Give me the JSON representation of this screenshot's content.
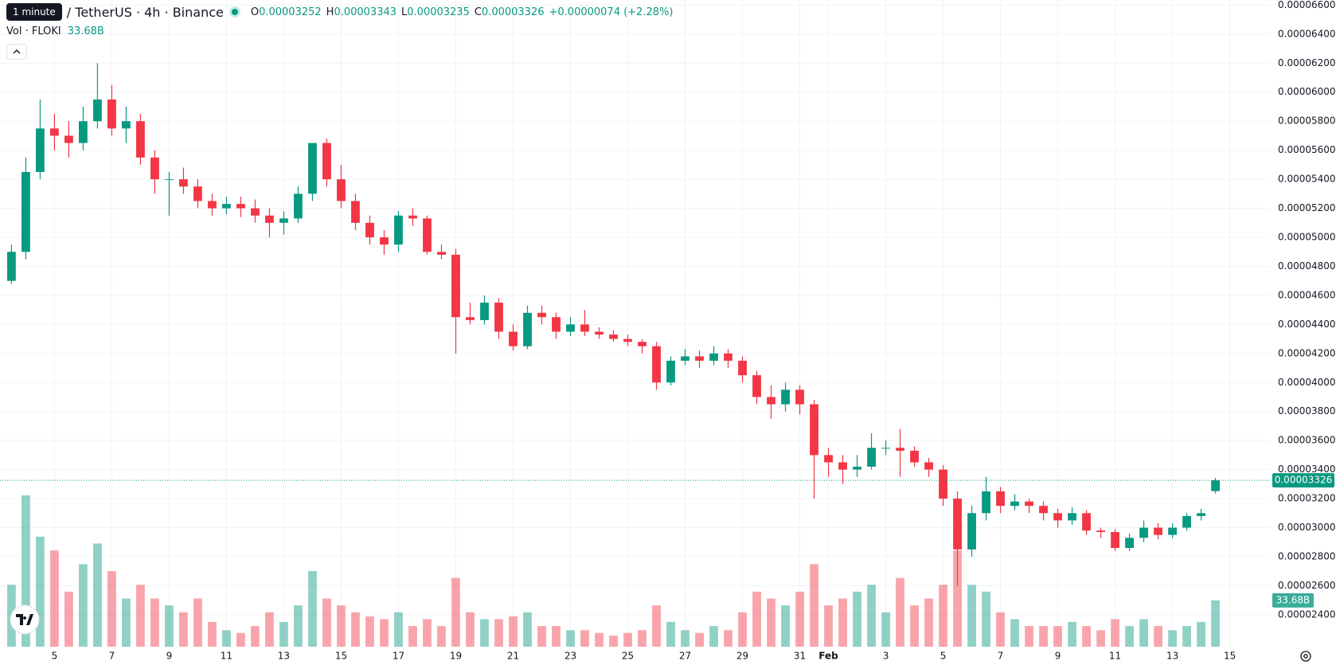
{
  "chart_data": {
    "type": "candlestick",
    "tooltip": "1 minute",
    "title": "/ TetherUS · 4h · Binance",
    "ohlc_labels": [
      "O",
      "H",
      "L",
      "C"
    ],
    "change": "+0.00000074 (+2.28%)",
    "volume_title": "Vol · FLOKI",
    "volume_last_label": "33.68B",
    "up_color": "#089981",
    "down_color": "#f23645",
    "grid": true,
    "xlim": [
      3.1,
      47.4
    ],
    "ylim": [
      2.18e-05,
      6.635e-05
    ],
    "xticks": [
      5,
      7,
      9,
      11,
      13,
      15,
      17,
      19,
      21,
      23,
      25,
      27,
      29,
      31,
      {
        "value": 32,
        "label": "Feb"
      },
      {
        "value": 34,
        "label": "3"
      },
      {
        "value": 36,
        "label": "5"
      },
      {
        "value": 38,
        "label": "7"
      },
      {
        "value": 40,
        "label": "9"
      },
      {
        "value": 42,
        "label": "11"
      },
      {
        "value": 44,
        "label": "13"
      },
      {
        "value": 46,
        "label": "15"
      }
    ],
    "yticks": [
      {
        "value": 2.4e-05,
        "label": "0.00002400"
      },
      {
        "value": 2.6e-05,
        "label": "0.00002600"
      },
      {
        "value": 2.8e-05,
        "label": "0.00002800"
      },
      {
        "value": 3e-05,
        "label": "0.00003000"
      },
      {
        "value": 3.2e-05,
        "label": "0.00003200"
      },
      {
        "value": 3.4e-05,
        "label": "0.00003400"
      },
      {
        "value": 3.6e-05,
        "label": "0.00003600"
      },
      {
        "value": 3.8e-05,
        "label": "0.00003800"
      },
      {
        "value": 4e-05,
        "label": "0.00004000"
      },
      {
        "value": 4.2e-05,
        "label": "0.00004200"
      },
      {
        "value": 4.4e-05,
        "label": "0.00004400"
      },
      {
        "value": 4.6e-05,
        "label": "0.00004600"
      },
      {
        "value": 4.8e-05,
        "label": "0.00004800"
      },
      {
        "value": 5e-05,
        "label": "0.00005000"
      },
      {
        "value": 5.2e-05,
        "label": "0.00005200"
      },
      {
        "value": 5.4e-05,
        "label": "0.00005400"
      },
      {
        "value": 5.6e-05,
        "label": "0.00005600"
      },
      {
        "value": 5.8e-05,
        "label": "0.00005800"
      },
      {
        "value": 6e-05,
        "label": "0.00006000"
      },
      {
        "value": 6.2e-05,
        "label": "0.00006200"
      },
      {
        "value": 6.4e-05,
        "label": "0.00006400"
      },
      {
        "value": 6.6e-05,
        "label": "0.00006600"
      }
    ],
    "x": [
      3.5,
      4,
      4.5,
      5,
      5.5,
      6,
      6.5,
      7,
      7.5,
      8,
      8.5,
      9,
      9.5,
      10,
      10.5,
      11,
      11.5,
      12,
      12.5,
      13,
      13.5,
      14,
      14.5,
      15,
      15.5,
      16,
      16.5,
      17,
      17.5,
      18,
      18.5,
      19,
      19.5,
      20,
      20.5,
      21,
      21.5,
      22,
      22.5,
      23,
      23.5,
      24,
      24.5,
      25,
      25.5,
      26,
      26.5,
      27,
      27.5,
      28,
      28.5,
      29,
      29.5,
      30,
      30.5,
      31,
      31.5,
      32,
      32.5,
      33,
      33.5,
      34,
      34.5,
      35,
      35.5,
      36,
      36.5,
      37,
      37.5,
      38,
      38.5,
      39,
      39.5,
      40,
      40.5,
      41,
      41.5,
      42,
      42.5,
      43,
      43.5,
      44,
      44.5,
      45,
      45.5
    ],
    "ohlc": [
      [
        4.7e-05,
        4.95e-05,
        4.68e-05,
        4.9e-05
      ],
      [
        4.9e-05,
        5.55e-05,
        4.85e-05,
        5.45e-05
      ],
      [
        5.45e-05,
        5.95e-05,
        5.4e-05,
        5.75e-05
      ],
      [
        5.75e-05,
        5.85e-05,
        5.6e-05,
        5.7e-05
      ],
      [
        5.7e-05,
        5.8e-05,
        5.55e-05,
        5.65e-05
      ],
      [
        5.65e-05,
        5.9e-05,
        5.6e-05,
        5.8e-05
      ],
      [
        5.8e-05,
        6.2e-05,
        5.75e-05,
        5.95e-05
      ],
      [
        5.95e-05,
        6.05e-05,
        5.7e-05,
        5.75e-05
      ],
      [
        5.75e-05,
        5.9e-05,
        5.65e-05,
        5.8e-05
      ],
      [
        5.8e-05,
        5.85e-05,
        5.5e-05,
        5.55e-05
      ],
      [
        5.55e-05,
        5.6e-05,
        5.3e-05,
        5.4e-05
      ],
      [
        5.4e-05,
        5.45e-05,
        5.15e-05,
        5.4e-05
      ],
      [
        5.4e-05,
        5.48e-05,
        5.3e-05,
        5.35e-05
      ],
      [
        5.35e-05,
        5.4e-05,
        5.2e-05,
        5.25e-05
      ],
      [
        5.25e-05,
        5.3e-05,
        5.15e-05,
        5.2e-05
      ],
      [
        5.2e-05,
        5.28e-05,
        5.16e-05,
        5.23e-05
      ],
      [
        5.23e-05,
        5.28e-05,
        5.14e-05,
        5.2e-05
      ],
      [
        5.2e-05,
        5.26e-05,
        5.1e-05,
        5.15e-05
      ],
      [
        5.15e-05,
        5.2e-05,
        5e-05,
        5.1e-05
      ],
      [
        5.1e-05,
        5.18e-05,
        5.02e-05,
        5.13e-05
      ],
      [
        5.13e-05,
        5.35e-05,
        5.1e-05,
        5.3e-05
      ],
      [
        5.3e-05,
        5.65e-05,
        5.25e-05,
        5.65e-05
      ],
      [
        5.65e-05,
        5.68e-05,
        5.35e-05,
        5.4e-05
      ],
      [
        5.4e-05,
        5.5e-05,
        5.2e-05,
        5.25e-05
      ],
      [
        5.25e-05,
        5.3e-05,
        5.05e-05,
        5.1e-05
      ],
      [
        5.1e-05,
        5.15e-05,
        4.95e-05,
        5e-05
      ],
      [
        5e-05,
        5.05e-05,
        4.88e-05,
        4.95e-05
      ],
      [
        4.95e-05,
        5.18e-05,
        4.9e-05,
        5.15e-05
      ],
      [
        5.15e-05,
        5.2e-05,
        5.08e-05,
        5.13e-05
      ],
      [
        5.13e-05,
        5.15e-05,
        4.88e-05,
        4.9e-05
      ],
      [
        4.9e-05,
        4.95e-05,
        4.85e-05,
        4.88e-05
      ],
      [
        4.88e-05,
        4.92e-05,
        4.2e-05,
        4.45e-05
      ],
      [
        4.45e-05,
        4.55e-05,
        4.4e-05,
        4.43e-05
      ],
      [
        4.43e-05,
        4.6e-05,
        4.4e-05,
        4.55e-05
      ],
      [
        4.55e-05,
        4.58e-05,
        4.3e-05,
        4.35e-05
      ],
      [
        4.35e-05,
        4.4e-05,
        4.22e-05,
        4.25e-05
      ],
      [
        4.25e-05,
        4.53e-05,
        4.23e-05,
        4.48e-05
      ],
      [
        4.48e-05,
        4.53e-05,
        4.4e-05,
        4.45e-05
      ],
      [
        4.45e-05,
        4.48e-05,
        4.3e-05,
        4.35e-05
      ],
      [
        4.35e-05,
        4.45e-05,
        4.32e-05,
        4.4e-05
      ],
      [
        4.4e-05,
        4.5e-05,
        4.32e-05,
        4.35e-05
      ],
      [
        4.35e-05,
        4.38e-05,
        4.3e-05,
        4.33e-05
      ],
      [
        4.33e-05,
        4.36e-05,
        4.28e-05,
        4.3e-05
      ],
      [
        4.3e-05,
        4.33e-05,
        4.25e-05,
        4.28e-05
      ],
      [
        4.28e-05,
        4.3e-05,
        4.2e-05,
        4.25e-05
      ],
      [
        4.25e-05,
        4.28e-05,
        3.95e-05,
        4e-05
      ],
      [
        4e-05,
        4.18e-05,
        3.98e-05,
        4.15e-05
      ],
      [
        4.15e-05,
        4.23e-05,
        4.12e-05,
        4.18e-05
      ],
      [
        4.18e-05,
        4.22e-05,
        4.1e-05,
        4.15e-05
      ],
      [
        4.15e-05,
        4.25e-05,
        4.12e-05,
        4.2e-05
      ],
      [
        4.2e-05,
        4.23e-05,
        4.1e-05,
        4.15e-05
      ],
      [
        4.15e-05,
        4.18e-05,
        4e-05,
        4.05e-05
      ],
      [
        4.05e-05,
        4.08e-05,
        3.85e-05,
        3.9e-05
      ],
      [
        3.9e-05,
        3.98e-05,
        3.75e-05,
        3.85e-05
      ],
      [
        3.85e-05,
        4e-05,
        3.8e-05,
        3.95e-05
      ],
      [
        3.95e-05,
        3.98e-05,
        3.78e-05,
        3.85e-05
      ],
      [
        3.85e-05,
        3.88e-05,
        3.2e-05,
        3.5e-05
      ],
      [
        3.5e-05,
        3.55e-05,
        3.35e-05,
        3.45e-05
      ],
      [
        3.45e-05,
        3.5e-05,
        3.3e-05,
        3.4e-05
      ],
      [
        3.4e-05,
        3.5e-05,
        3.35e-05,
        3.42e-05
      ],
      [
        3.42e-05,
        3.65e-05,
        3.4e-05,
        3.55e-05
      ],
      [
        3.55e-05,
        3.6e-05,
        3.5e-05,
        3.55e-05
      ],
      [
        3.55e-05,
        3.68e-05,
        3.35e-05,
        3.53e-05
      ],
      [
        3.53e-05,
        3.56e-05,
        3.42e-05,
        3.45e-05
      ],
      [
        3.45e-05,
        3.48e-05,
        3.35e-05,
        3.4e-05
      ],
      [
        3.4e-05,
        3.43e-05,
        3.15e-05,
        3.2e-05
      ],
      [
        3.2e-05,
        3.25e-05,
        2.6e-05,
        2.85e-05
      ],
      [
        2.85e-05,
        3.15e-05,
        2.8e-05,
        3.1e-05
      ],
      [
        3.1e-05,
        3.35e-05,
        3.05e-05,
        3.25e-05
      ],
      [
        3.25e-05,
        3.28e-05,
        3.1e-05,
        3.15e-05
      ],
      [
        3.15e-05,
        3.23e-05,
        3.12e-05,
        3.18e-05
      ],
      [
        3.18e-05,
        3.2e-05,
        3.1e-05,
        3.15e-05
      ],
      [
        3.15e-05,
        3.18e-05,
        3.05e-05,
        3.1e-05
      ],
      [
        3.1e-05,
        3.13e-05,
        3e-05,
        3.05e-05
      ],
      [
        3.05e-05,
        3.14e-05,
        3.02e-05,
        3.1e-05
      ],
      [
        3.1e-05,
        3.12e-05,
        2.95e-05,
        2.98e-05
      ],
      [
        2.98e-05,
        3e-05,
        2.93e-05,
        2.97e-05
      ],
      [
        2.97e-05,
        2.99e-05,
        2.84e-05,
        2.86e-05
      ],
      [
        2.86e-05,
        2.96e-05,
        2.84e-05,
        2.93e-05
      ],
      [
        2.93e-05,
        3.05e-05,
        2.9e-05,
        3e-05
      ],
      [
        3e-05,
        3.03e-05,
        2.92e-05,
        2.95e-05
      ],
      [
        2.95e-05,
        3.03e-05,
        2.93e-05,
        3e-05
      ],
      [
        3e-05,
        3.1e-05,
        2.98e-05,
        3.08e-05
      ],
      [
        3.08e-05,
        3.13e-05,
        3.05e-05,
        3.1e-05
      ],
      [
        3.252e-05,
        3.343e-05,
        3.235e-05,
        3.326e-05
      ]
    ],
    "volume": [
      45,
      110,
      80,
      70,
      40,
      60,
      75,
      55,
      35,
      45,
      35,
      30,
      25,
      35,
      18,
      12,
      10,
      15,
      25,
      18,
      30,
      55,
      35,
      30,
      25,
      22,
      20,
      25,
      15,
      20,
      15,
      50,
      25,
      20,
      20,
      22,
      25,
      15,
      15,
      12,
      12,
      10,
      8,
      10,
      12,
      30,
      18,
      12,
      10,
      15,
      12,
      25,
      40,
      35,
      30,
      40,
      60,
      30,
      35,
      40,
      45,
      25,
      50,
      30,
      35,
      45,
      70,
      45,
      40,
      25,
      20,
      15,
      15,
      15,
      18,
      15,
      12,
      20,
      15,
      20,
      15,
      12,
      15,
      18,
      33.68
    ]
  }
}
